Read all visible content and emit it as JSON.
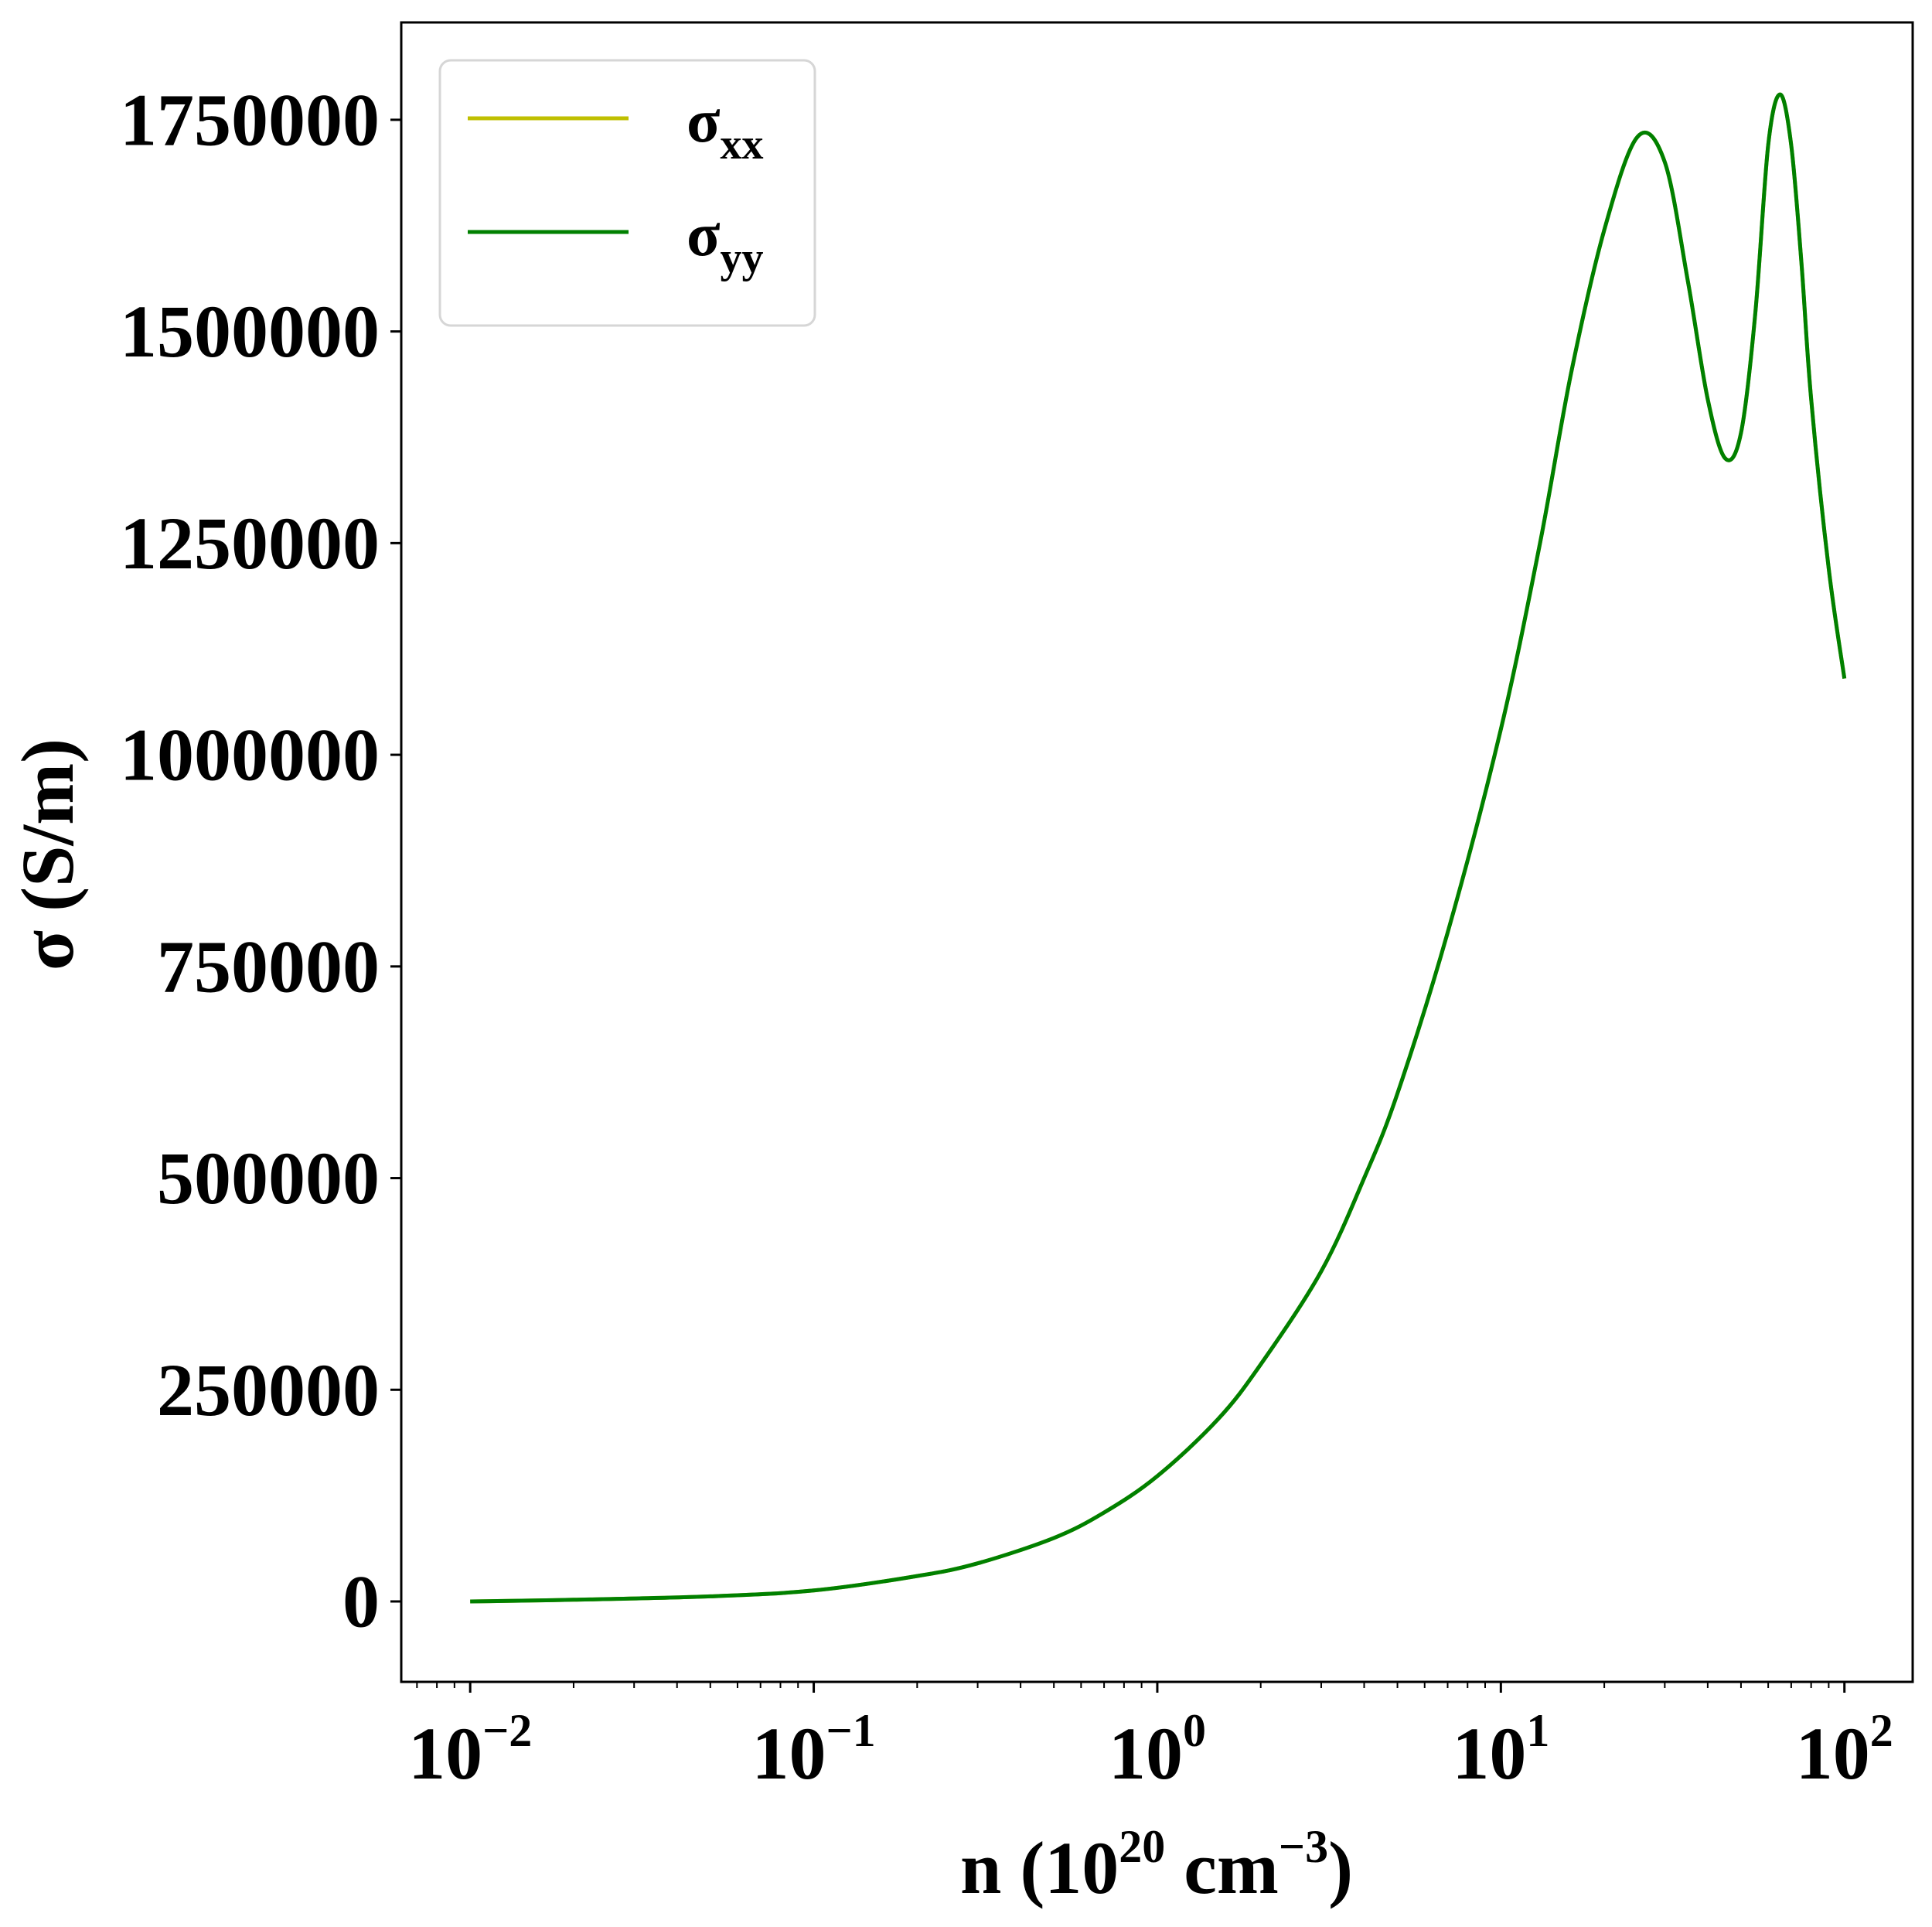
{
  "chart_data": {
    "type": "line",
    "xscale": "log",
    "xlim": [
      0.0063,
      158
    ],
    "ylim": [
      -95000,
      1865000
    ],
    "x_ticks": [
      {
        "value": 0.01,
        "base": "10",
        "exp": "−2"
      },
      {
        "value": 0.1,
        "base": "10",
        "exp": "−1"
      },
      {
        "value": 1,
        "base": "10",
        "exp": "0"
      },
      {
        "value": 10,
        "base": "10",
        "exp": "1"
      },
      {
        "value": 100,
        "base": "10",
        "exp": "2"
      }
    ],
    "y_ticks": [
      {
        "value": 0,
        "label": "0"
      },
      {
        "value": 250000,
        "label": "250000"
      },
      {
        "value": 500000,
        "label": "500000"
      },
      {
        "value": 750000,
        "label": "750000"
      },
      {
        "value": 1000000,
        "label": "1000000"
      },
      {
        "value": 1250000,
        "label": "1250000"
      },
      {
        "value": 1500000,
        "label": "1500000"
      },
      {
        "value": 1750000,
        "label": "1750000"
      }
    ],
    "xlabel": {
      "main": "n (10",
      "sup1": "20",
      "mid": " cm",
      "sup2": "−3",
      "end": ")"
    },
    "ylabel": "σ (S/m)",
    "grid": false,
    "legend_position": "top-left",
    "series": [
      {
        "name": "σ",
        "name_sub": "xx",
        "color": "#bfbf00",
        "x": [
          0.01,
          0.02,
          0.05,
          0.1,
          0.2,
          0.3,
          0.5,
          0.7,
          1,
          1.5,
          2,
          3,
          4,
          5,
          7,
          10,
          13,
          16,
          20,
          25,
          30,
          35,
          40,
          45,
          50,
          55,
          60,
          65,
          70,
          75,
          80,
          90,
          100
        ],
        "y": [
          0,
          2000,
          6000,
          13000,
          30000,
          45000,
          75000,
          105000,
          148000,
          215000,
          280000,
          390000,
          500000,
          600000,
          790000,
          1030000,
          1250000,
          1450000,
          1620000,
          1730000,
          1700000,
          1560000,
          1420000,
          1350000,
          1380000,
          1520000,
          1720000,
          1780000,
          1720000,
          1580000,
          1420000,
          1220000,
          1090000
        ]
      },
      {
        "name": "σ",
        "name_sub": "yy",
        "color": "#008000",
        "x": [
          0.01,
          0.02,
          0.05,
          0.1,
          0.2,
          0.3,
          0.5,
          0.7,
          1,
          1.5,
          2,
          3,
          4,
          5,
          7,
          10,
          13,
          16,
          20,
          25,
          30,
          35,
          40,
          45,
          50,
          55,
          60,
          65,
          70,
          75,
          80,
          90,
          100
        ],
        "y": [
          0,
          2000,
          6000,
          13000,
          30000,
          45000,
          75000,
          105000,
          148000,
          215000,
          280000,
          390000,
          500000,
          600000,
          790000,
          1030000,
          1250000,
          1450000,
          1620000,
          1730000,
          1700000,
          1560000,
          1420000,
          1350000,
          1380000,
          1520000,
          1720000,
          1780000,
          1720000,
          1580000,
          1420000,
          1220000,
          1090000
        ]
      }
    ]
  }
}
